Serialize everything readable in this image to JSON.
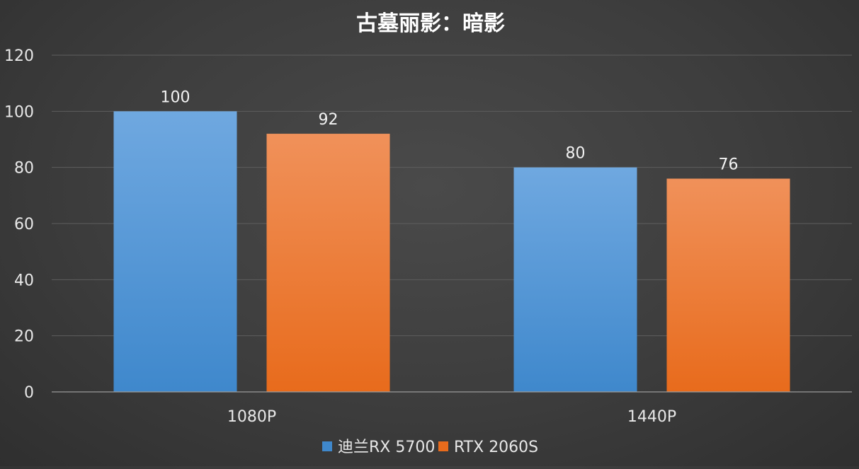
{
  "chart_data": {
    "type": "bar",
    "title": "古墓丽影：暗影",
    "categories": [
      "1080P",
      "1440P"
    ],
    "series": [
      {
        "name": "迪兰RX 5700",
        "values": [
          100,
          80
        ],
        "color_top": "#6fa8e0",
        "color_bottom": "#3f88cc"
      },
      {
        "name": "RTX 2060S",
        "values": [
          92,
          76
        ],
        "color_top": "#f0915a",
        "color_bottom": "#e86b1c"
      }
    ],
    "ylim": [
      0,
      120
    ],
    "yticks": [
      0,
      20,
      40,
      60,
      80,
      100,
      120
    ],
    "grid": true,
    "legend_position": "bottom"
  }
}
